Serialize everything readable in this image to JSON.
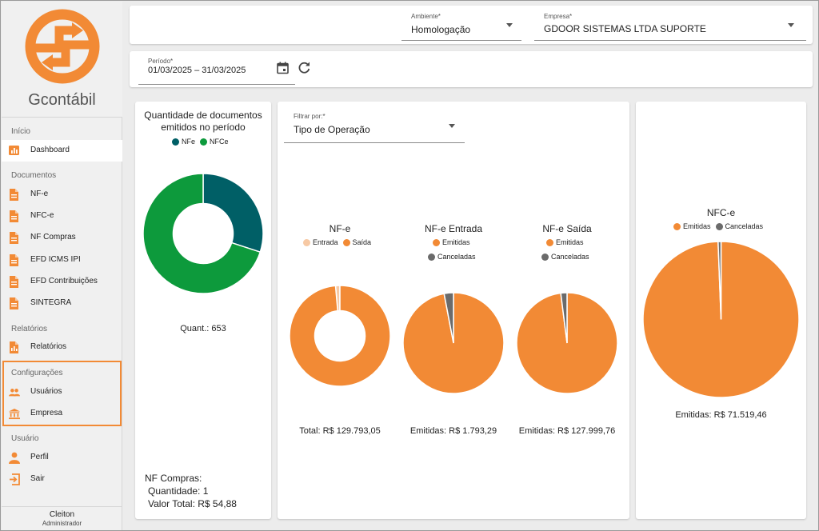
{
  "sidebar": {
    "brand": "Gcontábil",
    "sections": {
      "inicio": "Início",
      "documentos": "Documentos",
      "relatorios": "Relatórios",
      "configuracoes": "Configurações",
      "usuario": "Usuário"
    },
    "items": {
      "dashboard": "Dashboard",
      "nfe": "NF-e",
      "nfce": "NFC-e",
      "nf_compras": "NF Compras",
      "efd_icms": "EFD ICMS IPI",
      "efd_contrib": "EFD Contribuições",
      "sintegra": "SINTEGRA",
      "relatorios": "Relatórios",
      "usuarios": "Usuários",
      "empresa": "Empresa",
      "perfil": "Perfil",
      "sair": "Sair"
    },
    "user": {
      "name": "Cleiton",
      "role": "Administrador"
    },
    "accent": "#f28a35"
  },
  "header": {
    "ambiente_label": "Ambiente*",
    "ambiente_value": "Homologação",
    "empresa_label": "Empresa*",
    "empresa_value": "GDOOR SISTEMAS LTDA SUPORTE"
  },
  "periodo": {
    "label": "Período*",
    "value": "01/03/2025 – 31/03/2025",
    "calendar_icon": "calendar-icon",
    "refresh_icon": "refresh-icon"
  },
  "docs_card": {
    "title_line1": "Quantidade de documentos",
    "title_line2": "emitidos no período",
    "legend": [
      "NFe",
      "NFCe"
    ],
    "quant_text": "Quant.: 653",
    "compras_title": "NF Compras:",
    "compras_qty": "Quantidade: 1",
    "compras_total": "Valor Total: R$ 54,88"
  },
  "filter": {
    "label": "Filtrar por:*",
    "value": "Tipo de Operação"
  },
  "charts": {
    "nfe": {
      "title": "NF-e",
      "legend": [
        "Entrada",
        "Saída"
      ],
      "total": "Total: R$ 129.793,05"
    },
    "nfe_entrada": {
      "title": "NF-e Entrada",
      "legend": [
        "Emitidas",
        "Canceladas"
      ],
      "total": "Emitidas: R$ 1.793,29"
    },
    "nfe_saida": {
      "title": "NF-e Saída",
      "legend": [
        "Emitidas",
        "Canceladas"
      ],
      "total": "Emitidas: R$ 127.999,76"
    },
    "nfce": {
      "title": "NFC-e",
      "legend": [
        "Emitidas",
        "Canceladas"
      ],
      "total": "Emitidas: R$ 71.519,46"
    }
  },
  "colors": {
    "nfe": "#005f66",
    "nfce": "#0d9a3c",
    "orange": "#f28a35",
    "peach": "#f7c9a4",
    "gray": "#6b6b6b"
  },
  "chart_data": [
    {
      "type": "pie",
      "id": "docs",
      "categories": [
        "NFe",
        "NFCe"
      ],
      "values": [
        0.3,
        0.7
      ],
      "donut": true
    },
    {
      "type": "pie",
      "id": "nfe",
      "categories": [
        "Entrada",
        "Saída"
      ],
      "values": [
        0.014,
        0.986
      ],
      "donut": true
    },
    {
      "type": "pie",
      "id": "nfe_entrada",
      "categories": [
        "Emitidas",
        "Canceladas"
      ],
      "values": [
        0.97,
        0.03
      ]
    },
    {
      "type": "pie",
      "id": "nfe_saida",
      "categories": [
        "Emitidas",
        "Canceladas"
      ],
      "values": [
        0.98,
        0.02
      ]
    },
    {
      "type": "pie",
      "id": "nfce",
      "categories": [
        "Emitidas",
        "Canceladas"
      ],
      "values": [
        0.994,
        0.006
      ]
    }
  ]
}
